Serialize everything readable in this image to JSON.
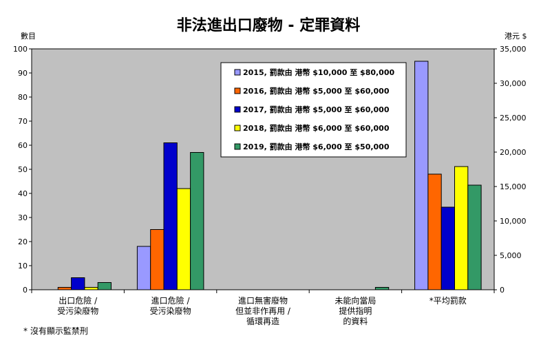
{
  "chart_data": {
    "type": "bar",
    "title": "非法進出口廢物 - 定罪資料",
    "ylabel_left": "數目",
    "ylabel_right": "港元 $",
    "ylim_left": [
      0,
      100
    ],
    "ylim_right": [
      0,
      35000
    ],
    "yticks_left": [
      "0",
      "10",
      "20",
      "30",
      "40",
      "50",
      "60",
      "70",
      "80",
      "90",
      "100"
    ],
    "yticks_right": [
      "0",
      "5,000",
      "10,000",
      "15,000",
      "20,000",
      "25,000",
      "30,000",
      "35,000"
    ],
    "categories": [
      [
        "出口危險 /",
        "受污染廢物"
      ],
      [
        "進口危險 /",
        "受污染廢物"
      ],
      [
        "進口無害廢物",
        "但並非作再用 /",
        "循環再造"
      ],
      [
        "未能向當局",
        "提供指明",
        "的資料"
      ],
      [
        "*平均罰款"
      ]
    ],
    "axis_of_category": [
      "left",
      "left",
      "left",
      "left",
      "right"
    ],
    "series": [
      {
        "name": "2015, 罰款由 港幣 $10,000 至 $80,000",
        "color": "#9999ff",
        "values": [
          0,
          18,
          0,
          0,
          33200
        ]
      },
      {
        "name": "2016, 罰款由 港幣 $5,000 至 $60,000",
        "color": "#ff6600",
        "values": [
          1,
          25,
          0,
          0,
          16800
        ]
      },
      {
        "name": "2017, 罰款由 港幣 $5,000 至 $60,000",
        "color": "#0000cc",
        "values": [
          5,
          61,
          0,
          0,
          12000
        ]
      },
      {
        "name": "2018, 罰款由 港幣 $6,000 至 $60,000",
        "color": "#ffff00",
        "values": [
          1,
          42,
          0,
          0,
          17900
        ]
      },
      {
        "name": "2019, 罰款由 港幣 $6,000 至 $50,000",
        "color": "#339966",
        "values": [
          3,
          57,
          0,
          1,
          15200
        ]
      }
    ],
    "plot_background": "#c0c0c0",
    "legend_position": "top-right",
    "grid": false
  },
  "footnote": "* 沒有顯示監禁刑"
}
